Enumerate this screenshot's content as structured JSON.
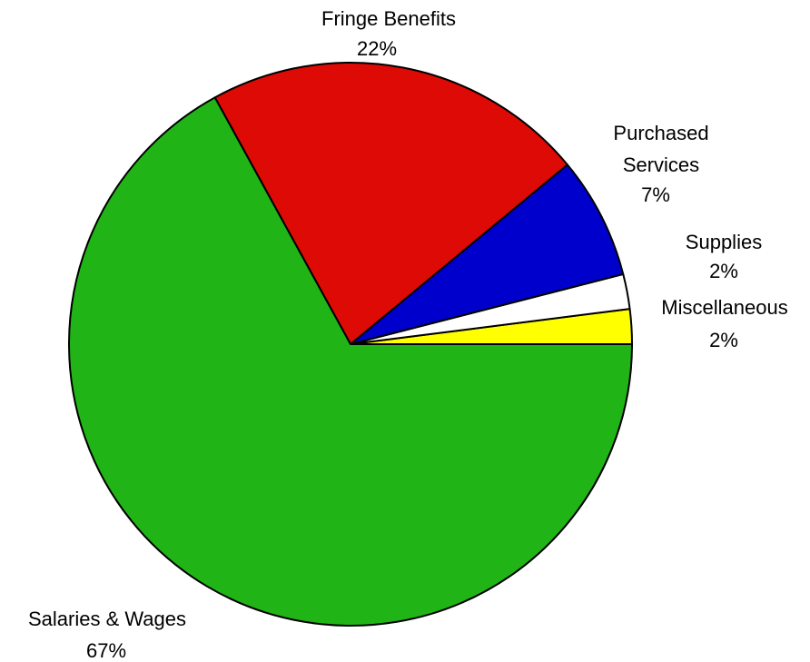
{
  "chart_data": {
    "type": "pie",
    "title": "",
    "slices": [
      {
        "label": "Miscellaneous",
        "value": 2,
        "value_label": "2%",
        "color": "#FFFF00"
      },
      {
        "label": "Supplies",
        "value": 2,
        "value_label": "2%",
        "color": "#FFFFFF"
      },
      {
        "label": "Purchased Services",
        "label_lines": [
          "Purchased",
          "Services"
        ],
        "value": 7,
        "value_label": "7%",
        "color": "#0000CC"
      },
      {
        "label": "Fringe Benefits",
        "value": 22,
        "value_label": "22%",
        "color": "#DD0A05"
      },
      {
        "label": "Salaries & Wages",
        "value": 67,
        "value_label": "67%",
        "color": "#21B417"
      }
    ],
    "start_angle_deg": 0,
    "direction": "counterclockwise",
    "legend": "none",
    "labels_position": "outside"
  }
}
